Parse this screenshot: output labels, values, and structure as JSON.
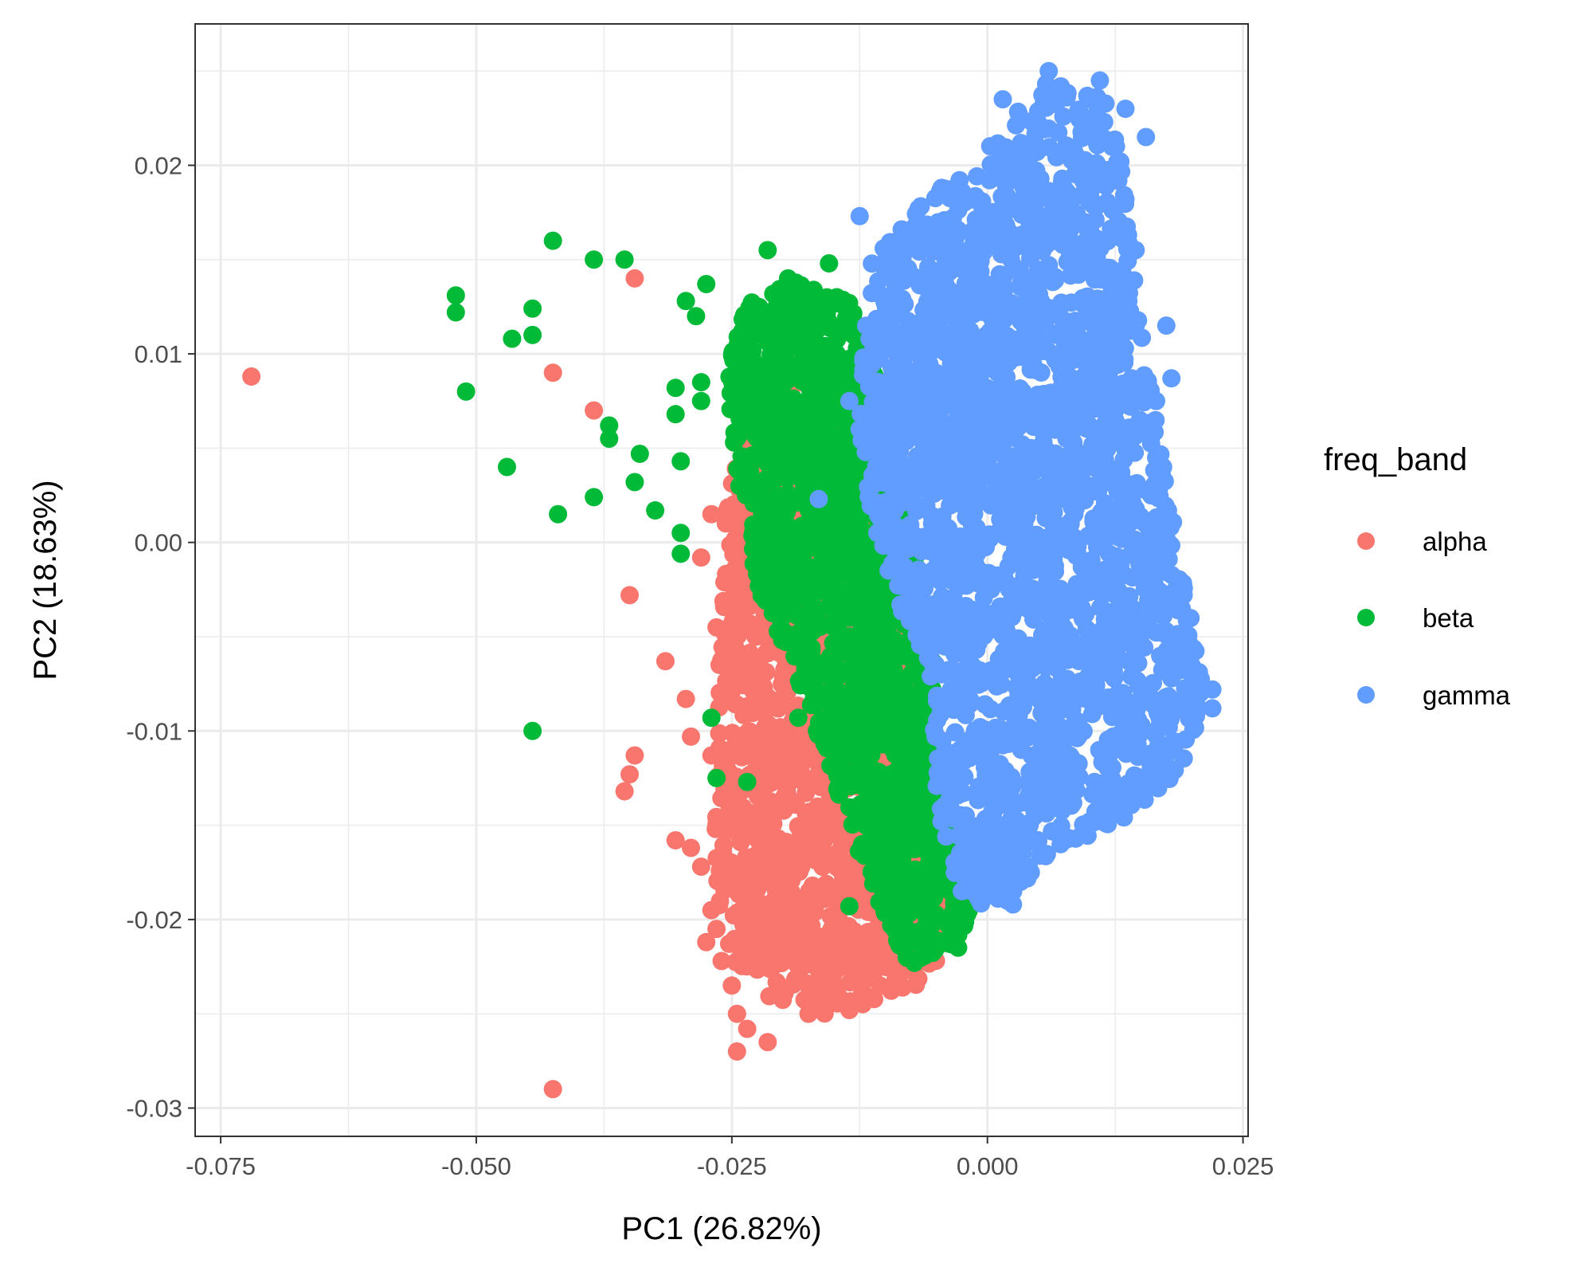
{
  "chart_data": {
    "type": "scatter",
    "title": "",
    "xlabel": "PC1 (26.82%)",
    "ylabel": "PC2 (18.63%)",
    "xlim": [
      -0.0775,
      0.0255
    ],
    "ylim": [
      -0.0315,
      0.0275
    ],
    "x_ticks": [
      -0.075,
      -0.05,
      -0.025,
      0.0,
      0.025
    ],
    "x_tick_labels": [
      "-0.075",
      "-0.050",
      "-0.025",
      "0.000",
      "0.025"
    ],
    "y_ticks": [
      -0.03,
      -0.02,
      -0.01,
      0.0,
      0.01,
      0.02
    ],
    "y_tick_labels": [
      "-0.03",
      "-0.02",
      "-0.01",
      "0.00",
      "0.01",
      "0.02"
    ],
    "grid": true,
    "legend": {
      "title": "freq_band",
      "position": "right"
    },
    "series": [
      {
        "name": "alpha",
        "color": "#F8766D",
        "points": [
          [
            -0.072,
            0.0088
          ],
          [
            -0.0425,
            0.009
          ],
          [
            -0.0385,
            0.007
          ],
          [
            -0.0345,
            0.014
          ],
          [
            -0.035,
            -0.0028
          ],
          [
            -0.0315,
            -0.0063
          ],
          [
            -0.0295,
            -0.0083
          ],
          [
            -0.029,
            -0.0103
          ],
          [
            -0.0345,
            -0.0113
          ],
          [
            -0.035,
            -0.0123
          ],
          [
            -0.0355,
            -0.0132
          ],
          [
            -0.0305,
            -0.0158
          ],
          [
            -0.029,
            -0.0162
          ],
          [
            -0.028,
            -0.0172
          ],
          [
            -0.027,
            -0.0195
          ],
          [
            -0.0265,
            -0.0205
          ],
          [
            -0.0275,
            -0.0212
          ],
          [
            -0.026,
            -0.0222
          ],
          [
            -0.025,
            -0.0235
          ],
          [
            -0.0245,
            -0.025
          ],
          [
            -0.0235,
            -0.0258
          ],
          [
            -0.0215,
            -0.0265
          ],
          [
            -0.0245,
            -0.027
          ],
          [
            -0.0425,
            -0.029
          ],
          [
            -0.028,
            -0.0008
          ],
          [
            -0.027,
            0.0015
          ],
          [
            -0.0265,
            -0.0045
          ],
          [
            -0.0262,
            -0.0065
          ],
          [
            -0.027,
            -0.0113
          ],
          [
            -0.025,
            -0.0135
          ],
          [
            -0.0235,
            -0.0152
          ],
          [
            -0.0225,
            -0.0182
          ],
          [
            -0.021,
            -0.0207
          ],
          [
            -0.018,
            -0.0222
          ],
          [
            -0.0155,
            -0.0245
          ],
          [
            -0.0135,
            -0.0248
          ],
          [
            -0.0175,
            -0.025
          ],
          [
            -0.012,
            -0.024
          ],
          [
            -0.0105,
            -0.0235
          ],
          [
            -0.009,
            -0.0232
          ]
        ]
      },
      {
        "name": "beta",
        "color": "#00BA38",
        "points": [
          [
            -0.0425,
            0.016
          ],
          [
            -0.0385,
            0.015
          ],
          [
            -0.0355,
            0.015
          ],
          [
            -0.052,
            0.0131
          ],
          [
            -0.052,
            0.0122
          ],
          [
            -0.0445,
            0.0124
          ],
          [
            -0.0445,
            0.011
          ],
          [
            -0.0465,
            0.0108
          ],
          [
            -0.051,
            0.008
          ],
          [
            -0.037,
            0.0062
          ],
          [
            -0.037,
            0.0055
          ],
          [
            -0.034,
            0.0047
          ],
          [
            -0.0345,
            0.0032
          ],
          [
            -0.0385,
            0.0024
          ],
          [
            -0.042,
            0.0015
          ],
          [
            -0.047,
            0.004
          ],
          [
            -0.0325,
            0.0017
          ],
          [
            -0.03,
            0.0005
          ],
          [
            -0.03,
            -0.0006
          ],
          [
            -0.03,
            0.0043
          ],
          [
            -0.0305,
            0.0068
          ],
          [
            -0.0305,
            0.0082
          ],
          [
            -0.028,
            0.0085
          ],
          [
            -0.028,
            0.0075
          ],
          [
            -0.0295,
            0.0128
          ],
          [
            -0.0285,
            0.012
          ],
          [
            -0.0275,
            0.0137
          ],
          [
            -0.0215,
            0.0155
          ],
          [
            -0.0195,
            0.014
          ],
          [
            -0.0155,
            0.0148
          ],
          [
            -0.0445,
            -0.01
          ],
          [
            -0.027,
            -0.0093
          ],
          [
            -0.0265,
            -0.0125
          ],
          [
            -0.0235,
            -0.0127
          ],
          [
            -0.0185,
            -0.0093
          ],
          [
            -0.0135,
            -0.0193
          ]
        ]
      },
      {
        "name": "gamma",
        "color": "#619CFF",
        "points": [
          [
            0.006,
            0.025
          ],
          [
            0.011,
            0.0245
          ],
          [
            0.0015,
            0.0235
          ],
          [
            0.0135,
            0.023
          ],
          [
            0.0155,
            0.0215
          ],
          [
            0.013,
            0.0202
          ],
          [
            0.0135,
            0.0182
          ],
          [
            -0.0125,
            0.0173
          ],
          [
            0.0145,
            0.0155
          ],
          [
            0.0145,
            0.0115
          ],
          [
            0.0175,
            0.0115
          ],
          [
            0.018,
            0.0087
          ],
          [
            0.0165,
            0.0075
          ],
          [
            0.0165,
            0.0045
          ],
          [
            0.0165,
            0.0027
          ],
          [
            0.019,
            -0.0035
          ],
          [
            0.022,
            -0.0078
          ],
          [
            0.022,
            -0.0088
          ],
          [
            -0.0165,
            0.0023
          ],
          [
            -0.0125,
            0.006
          ],
          [
            -0.0135,
            0.0075
          ],
          [
            -0.0085,
            -0.0033
          ],
          [
            -0.0065,
            -0.0048
          ],
          [
            -0.0045,
            -0.0125
          ],
          [
            -0.0045,
            -0.0148
          ],
          [
            -0.0015,
            -0.0175
          ],
          [
            -0.0025,
            -0.0185
          ],
          [
            0.0025,
            -0.0192
          ]
        ]
      }
    ],
    "clouds": [
      {
        "series": "alpha",
        "boundary": [
          [
            -0.0215,
            0.0095
          ],
          [
            -0.0165,
            0.0095
          ],
          [
            -0.0125,
            0.006
          ],
          [
            -0.008,
            -0.002
          ],
          [
            -0.006,
            -0.01
          ],
          [
            -0.004,
            -0.018
          ],
          [
            -0.003,
            -0.021
          ],
          [
            -0.007,
            -0.0235
          ],
          [
            -0.011,
            -0.0245
          ],
          [
            -0.016,
            -0.025
          ],
          [
            -0.0205,
            -0.0243
          ],
          [
            -0.0245,
            -0.0232
          ],
          [
            -0.026,
            -0.0205
          ],
          [
            -0.0268,
            -0.017
          ],
          [
            -0.0265,
            -0.012
          ],
          [
            -0.0262,
            -0.005
          ],
          [
            -0.0255,
            0.002
          ],
          [
            -0.0235,
            0.007
          ]
        ],
        "n": 1500
      },
      {
        "series": "beta",
        "boundary": [
          [
            -0.0235,
            0.0128
          ],
          [
            -0.0195,
            0.014
          ],
          [
            -0.0135,
            0.0128
          ],
          [
            -0.009,
            0.006
          ],
          [
            -0.0065,
            -0.002
          ],
          [
            -0.004,
            -0.011
          ],
          [
            -0.002,
            -0.0185
          ],
          [
            -0.0015,
            -0.0205
          ],
          [
            -0.0035,
            -0.022
          ],
          [
            -0.0075,
            -0.0225
          ],
          [
            -0.0095,
            -0.0205
          ],
          [
            -0.0125,
            -0.0165
          ],
          [
            -0.0155,
            -0.012
          ],
          [
            -0.019,
            -0.0065
          ],
          [
            -0.0225,
            -0.0025
          ],
          [
            -0.0245,
            0.0035
          ],
          [
            -0.0255,
            0.009
          ]
        ],
        "n": 1600
      },
      {
        "series": "gamma",
        "boundary": [
          [
            0.0055,
            0.0245
          ],
          [
            0.0115,
            0.0235
          ],
          [
            0.013,
            0.0205
          ],
          [
            0.0135,
            0.018
          ],
          [
            0.0145,
            0.0135
          ],
          [
            0.0158,
            0.009
          ],
          [
            0.0172,
            0.004
          ],
          [
            0.019,
            -0.001
          ],
          [
            0.0205,
            -0.0055
          ],
          [
            0.0215,
            -0.0085
          ],
          [
            0.019,
            -0.012
          ],
          [
            0.014,
            -0.0145
          ],
          [
            0.0085,
            -0.016
          ],
          [
            0.004,
            -0.0178
          ],
          [
            0.0015,
            -0.0195
          ],
          [
            -0.0005,
            -0.0195
          ],
          [
            -0.0035,
            -0.0175
          ],
          [
            -0.005,
            -0.013
          ],
          [
            -0.0055,
            -0.008
          ],
          [
            -0.0085,
            -0.0035
          ],
          [
            -0.0115,
            0.0015
          ],
          [
            -0.0125,
            0.006
          ],
          [
            -0.012,
            0.0112
          ],
          [
            -0.0115,
            0.0148
          ],
          [
            -0.006,
            0.0183
          ],
          [
            -0.0025,
            0.0195
          ],
          [
            0.002,
            0.0222
          ]
        ],
        "n": 2400
      }
    ]
  }
}
